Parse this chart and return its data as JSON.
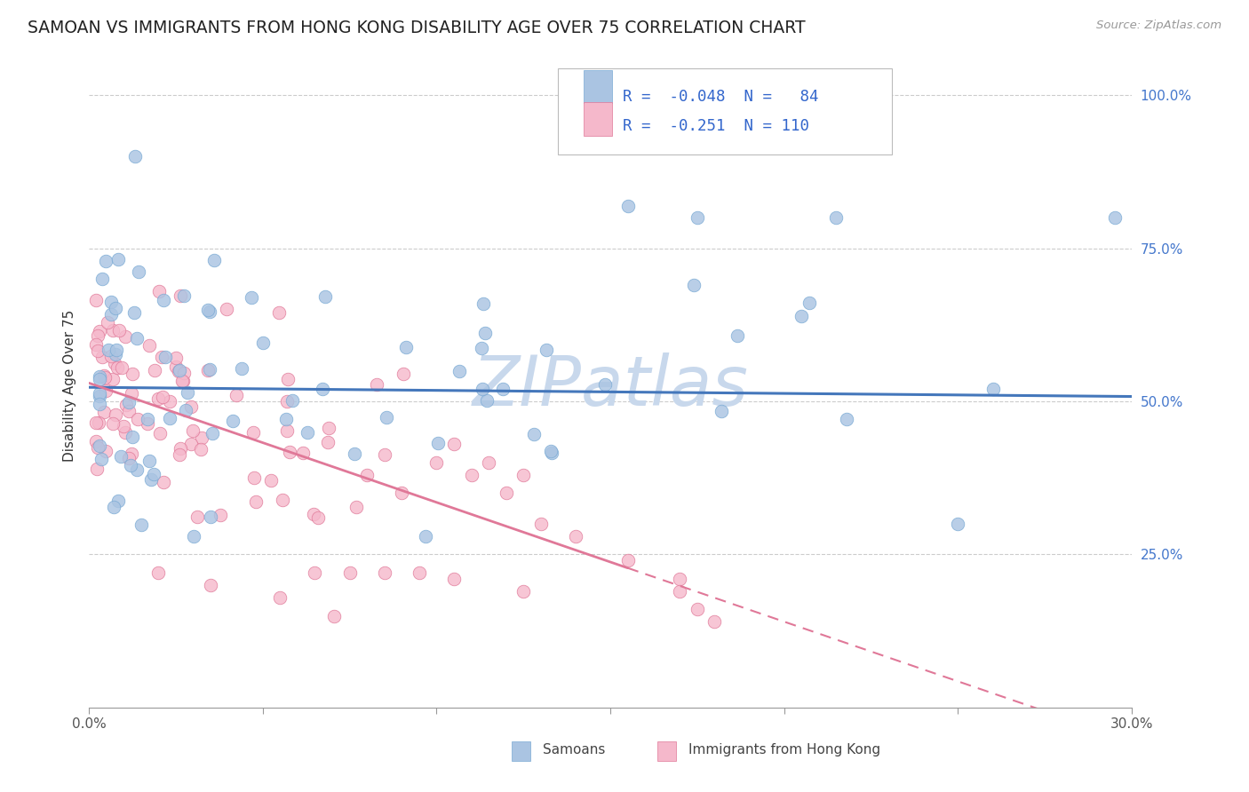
{
  "title": "SAMOAN VS IMMIGRANTS FROM HONG KONG DISABILITY AGE OVER 75 CORRELATION CHART",
  "source": "Source: ZipAtlas.com",
  "ylabel": "Disability Age Over 75",
  "xmin": 0.0,
  "xmax": 0.3,
  "ymin": 0.0,
  "ymax": 1.05,
  "series1_name": "Samoans",
  "series1_color": "#aac4e2",
  "series1_edge_color": "#7aaad4",
  "series1_R": -0.048,
  "series1_N": 84,
  "series1_line_color": "#4477bb",
  "series2_name": "Immigrants from Hong Kong",
  "series2_color": "#f5b8cb",
  "series2_edge_color": "#e07898",
  "series2_R": -0.251,
  "series2_N": 110,
  "series2_line_color": "#e07898",
  "background_color": "#ffffff",
  "grid_color": "#cccccc",
  "title_fontsize": 13.5,
  "axis_label_fontsize": 11,
  "tick_fontsize": 11,
  "watermark_text": "ZIPatlas",
  "watermark_color": "#c8d8ec",
  "legend_text_color": "#3366cc",
  "legend_r1": "R =  -0.048  N =   84",
  "legend_r2": "R =  -0.251  N = 110"
}
